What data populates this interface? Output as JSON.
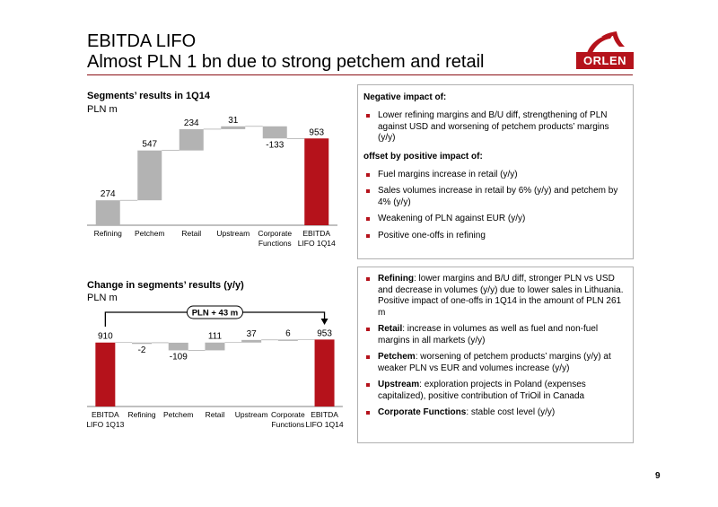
{
  "header": {
    "title_line1": "EBITDA LIFO",
    "title_line2": "Almost PLN 1 bn due to strong petchem and retail",
    "logo_text": "ORLEN"
  },
  "colors": {
    "accent_red": "#b5121b",
    "bar_grey": "#b3b3b3",
    "rule": "#8b0f14"
  },
  "chart_data": [
    {
      "type": "bar",
      "subtype": "waterfall",
      "title": "Segments’ results in 1Q14",
      "unit": "PLN m",
      "categories": [
        "Refining",
        "Petchem",
        "Retail",
        "Upstream",
        "Corporate Functions",
        "EBITDA LIFO 1Q14"
      ],
      "category_lines": [
        [
          "Refining"
        ],
        [
          "Petchem"
        ],
        [
          "Retail"
        ],
        [
          "Upstream"
        ],
        [
          "Corporate",
          "Functions"
        ],
        [
          "EBITDA",
          "LIFO 1Q14"
        ]
      ],
      "values": [
        274,
        547,
        234,
        31,
        -133,
        953
      ],
      "labels": [
        "274",
        "547",
        "234",
        "31",
        "-133",
        "953"
      ],
      "total_index": [
        5
      ]
    },
    {
      "type": "bar",
      "subtype": "waterfall",
      "title": "Change in segments’ results (y/y)",
      "unit": "PLN m",
      "annotation": "PLN + 43 m",
      "categories": [
        "EBITDA LIFO 1Q13",
        "Refining",
        "Petchem",
        "Retail",
        "Upstream",
        "Corporate Functions",
        "EBITDA LIFO 1Q14"
      ],
      "category_lines": [
        [
          "EBITDA",
          "LIFO 1Q13"
        ],
        [
          "Refining"
        ],
        [
          "Petchem"
        ],
        [
          "Retail"
        ],
        [
          "Upstream"
        ],
        [
          "Corporate",
          "Functions"
        ],
        [
          "EBITDA",
          "LIFO 1Q14"
        ]
      ],
      "values": [
        910,
        -2,
        -109,
        111,
        37,
        6,
        953
      ],
      "labels": [
        "910",
        "-2",
        "-109",
        "111",
        "37",
        "6",
        "953"
      ],
      "total_index": [
        0,
        6
      ]
    }
  ],
  "panel_top": {
    "negative_heading": "Negative impact of:",
    "negative_items": [
      "Lower refining margins and B/U diff, strengthening of PLN against USD and worsening of petchem products’ margins (y/y)"
    ],
    "positive_heading": "offset by positive impact of:",
    "positive_items": [
      "Fuel margins increase in retail (y/y)",
      "Sales volumes increase in retail by 6% (y/y) and petchem by 4% (y/y)",
      "Weakening of PLN against EUR (y/y)",
      "Positive one-offs in refining"
    ]
  },
  "panel_bottom": {
    "items": [
      {
        "label": "Refining",
        "text": ": lower margins and B/U diff, stronger PLN vs USD and decrease in volumes (y/y) due to lower sales in Lithuania. Positive impact of one-offs in 1Q14 in the amount of PLN 261 m"
      },
      {
        "label": "Retail",
        "text": ": increase in volumes as well as fuel and non-fuel margins in all markets (y/y)"
      },
      {
        "label": "Petchem",
        "text": ": worsening of petchem products’ margins (y/y) at  weaker PLN vs EUR and volumes increase (y/y)"
      },
      {
        "label": "Upstream",
        "text": ": exploration projects in Poland (expenses capitalized), positive contribution of TriOil in Canada"
      },
      {
        "label": "Corporate Functions",
        "text": ": stable cost level (y/y)"
      }
    ]
  },
  "footer": {
    "page_number": "9"
  }
}
